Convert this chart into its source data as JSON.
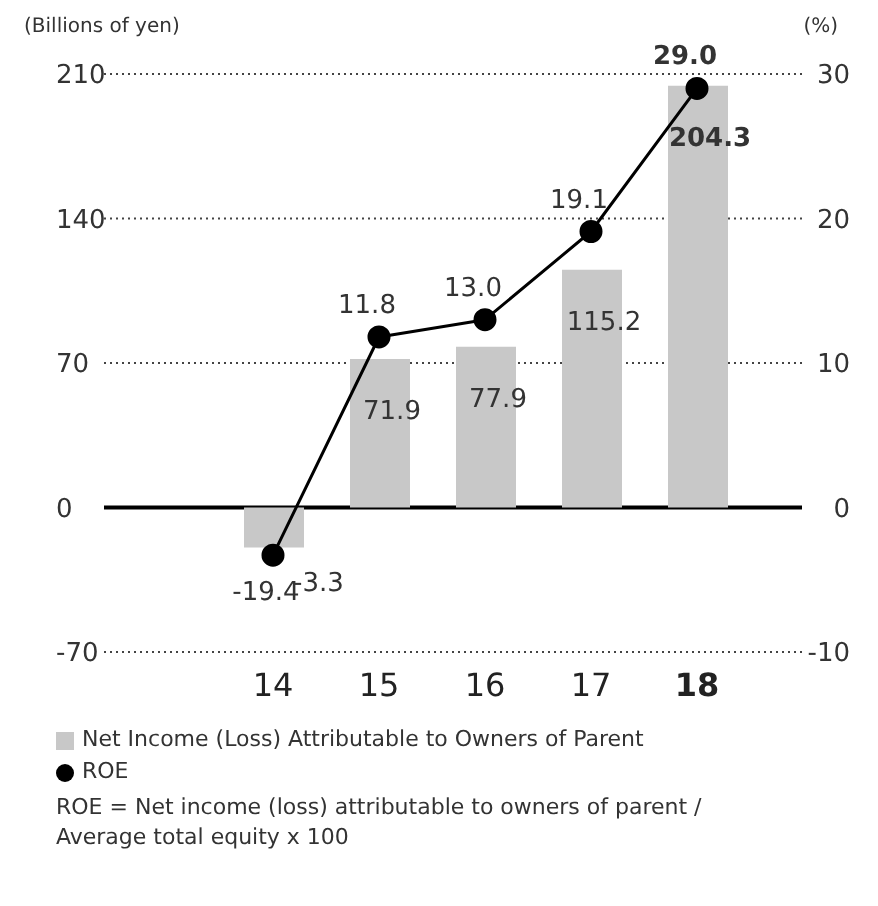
{
  "chart_data": {
    "type": "bar",
    "ylabel": "(Billions of yen)",
    "y2label": "(%)",
    "categories": [
      "14",
      "15",
      "16",
      "17",
      "18"
    ],
    "series": [
      {
        "name": "Net Income (Loss) Attributable to Owners of Parent",
        "color": "#c8c8c8",
        "values": [
          -19.4,
          71.9,
          77.9,
          115.2,
          204.3
        ],
        "value_labels": [
          "-19.4",
          "71.9",
          "77.9",
          "115.2",
          "204.3"
        ]
      },
      {
        "name": "ROE",
        "type": "line",
        "axis": "y2",
        "color": "#000000",
        "values": [
          -3.3,
          11.8,
          13.0,
          19.1,
          29.0
        ],
        "value_labels": [
          "-3.3",
          "11.8",
          "13.0",
          "19.1",
          "29.0"
        ]
      }
    ],
    "ylim": [
      -70,
      210
    ],
    "yticks": [
      -70,
      0,
      70,
      140,
      210
    ],
    "y2lim": [
      -10,
      30
    ],
    "y2ticks": [
      -10,
      0,
      10,
      20,
      30
    ],
    "grid": "y",
    "legend": "bottom",
    "marker": "circle",
    "annotations": [
      "ROE = Net income (loss) attributable to owners of parent / Average total equity x 100"
    ]
  }
}
